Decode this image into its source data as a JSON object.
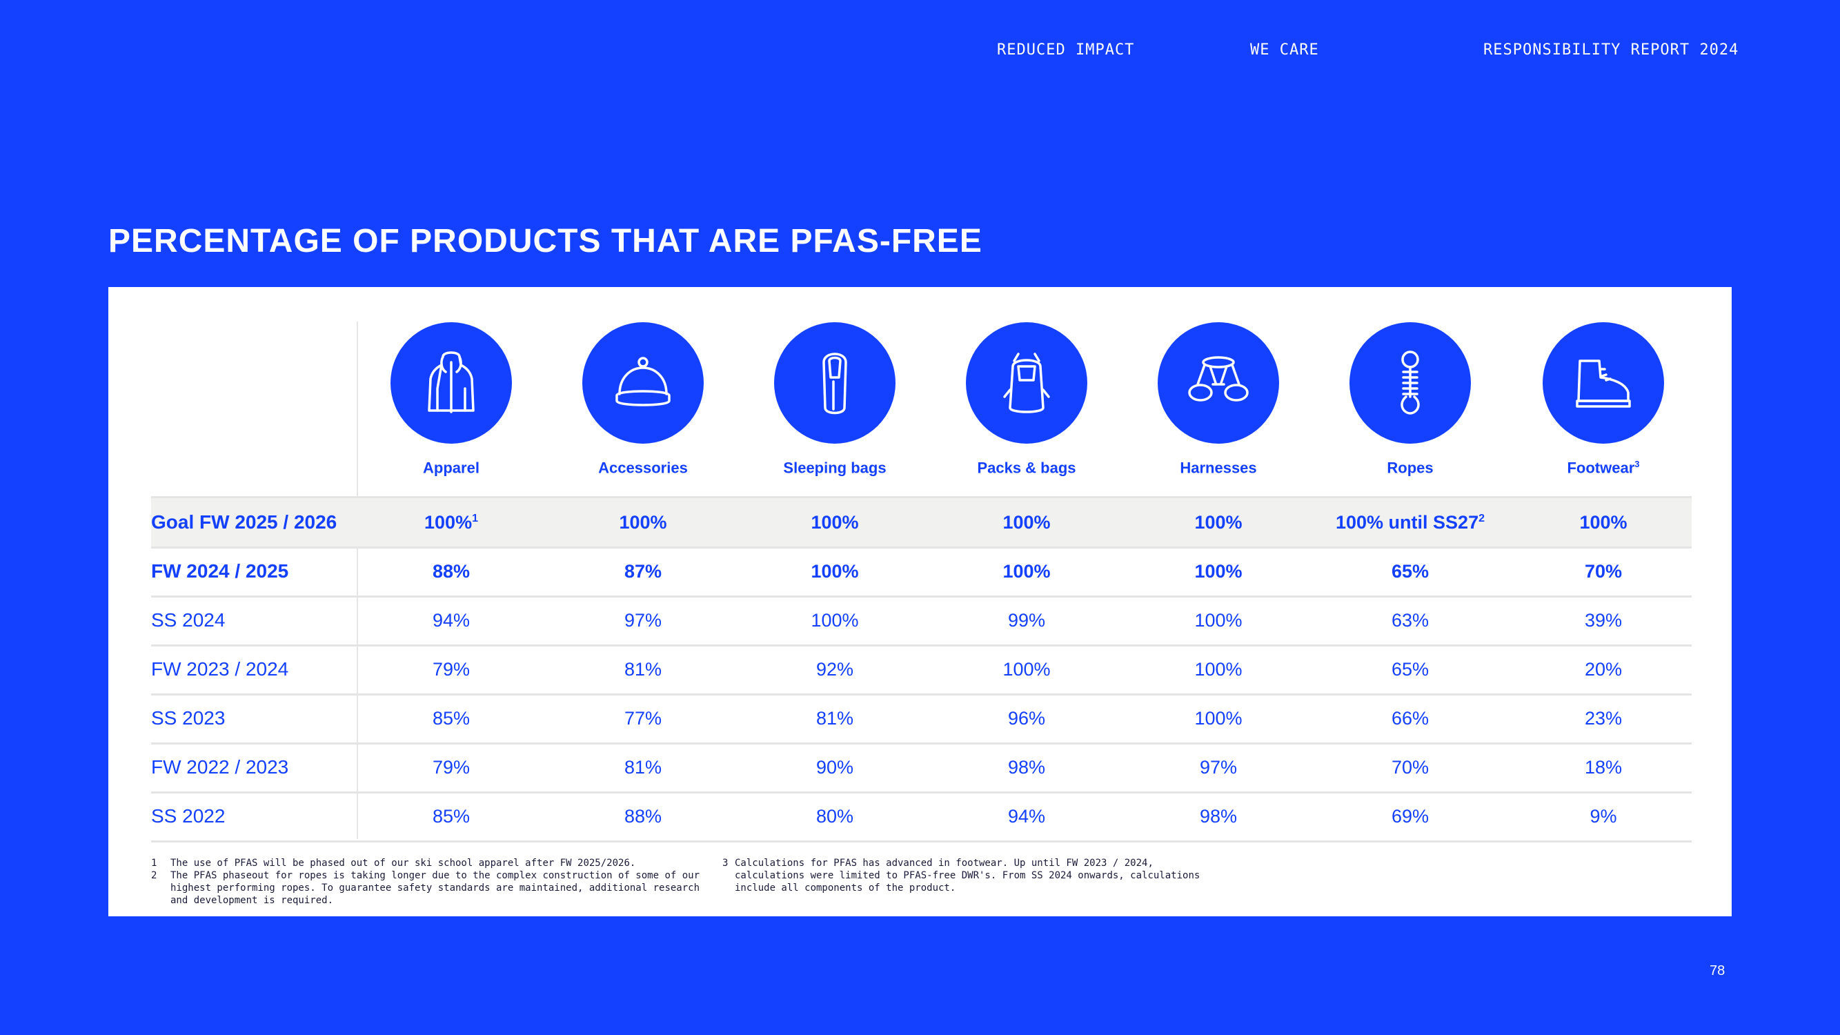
{
  "header": {
    "nav": [
      "REDUCED IMPACT",
      "WE CARE",
      "RESPONSIBILITY REPORT 2024"
    ]
  },
  "title": "PERCENTAGE OF PRODUCTS THAT ARE PFAS-FREE",
  "table": {
    "columns": [
      {
        "label": "Apparel",
        "sup": "",
        "icon": "jacket-icon"
      },
      {
        "label": "Accessories",
        "sup": "",
        "icon": "beanie-icon"
      },
      {
        "label": "Sleeping bags",
        "sup": "",
        "icon": "sleeping-bag-icon"
      },
      {
        "label": "Packs & bags",
        "sup": "",
        "icon": "backpack-icon"
      },
      {
        "label": "Harnesses",
        "sup": "",
        "icon": "harness-icon"
      },
      {
        "label": "Ropes",
        "sup": "",
        "icon": "rope-icon"
      },
      {
        "label": "Footwear",
        "sup": "3",
        "icon": "boot-icon"
      }
    ],
    "rows": [
      {
        "label": "Goal FW 2025 / 2026",
        "style": "goal",
        "cells": [
          {
            "v": "100%",
            "sup": "1"
          },
          {
            "v": "100%",
            "sup": ""
          },
          {
            "v": "100%",
            "sup": ""
          },
          {
            "v": "100%",
            "sup": ""
          },
          {
            "v": "100%",
            "sup": ""
          },
          {
            "v": "100% until SS27",
            "sup": "2"
          },
          {
            "v": "100%",
            "sup": ""
          }
        ]
      },
      {
        "label": "FW 2024 / 2025",
        "style": "bold",
        "cells": [
          {
            "v": "88%",
            "sup": ""
          },
          {
            "v": "87%",
            "sup": ""
          },
          {
            "v": "100%",
            "sup": ""
          },
          {
            "v": "100%",
            "sup": ""
          },
          {
            "v": "100%",
            "sup": ""
          },
          {
            "v": "65%",
            "sup": ""
          },
          {
            "v": "70%",
            "sup": ""
          }
        ]
      },
      {
        "label": "SS 2024",
        "style": "normal",
        "cells": [
          {
            "v": "94%",
            "sup": ""
          },
          {
            "v": "97%",
            "sup": ""
          },
          {
            "v": "100%",
            "sup": ""
          },
          {
            "v": "99%",
            "sup": ""
          },
          {
            "v": "100%",
            "sup": ""
          },
          {
            "v": "63%",
            "sup": ""
          },
          {
            "v": "39%",
            "sup": ""
          }
        ]
      },
      {
        "label": "FW 2023 / 2024",
        "style": "normal",
        "cells": [
          {
            "v": "79%",
            "sup": ""
          },
          {
            "v": "81%",
            "sup": ""
          },
          {
            "v": "92%",
            "sup": ""
          },
          {
            "v": "100%",
            "sup": ""
          },
          {
            "v": "100%",
            "sup": ""
          },
          {
            "v": "65%",
            "sup": ""
          },
          {
            "v": "20%",
            "sup": ""
          }
        ]
      },
      {
        "label": "SS 2023",
        "style": "normal",
        "cells": [
          {
            "v": "85%",
            "sup": ""
          },
          {
            "v": "77%",
            "sup": ""
          },
          {
            "v": "81%",
            "sup": ""
          },
          {
            "v": "96%",
            "sup": ""
          },
          {
            "v": "100%",
            "sup": ""
          },
          {
            "v": "66%",
            "sup": ""
          },
          {
            "v": "23%",
            "sup": ""
          }
        ]
      },
      {
        "label": "FW 2022 / 2023",
        "style": "normal",
        "cells": [
          {
            "v": "79%",
            "sup": ""
          },
          {
            "v": "81%",
            "sup": ""
          },
          {
            "v": "90%",
            "sup": ""
          },
          {
            "v": "98%",
            "sup": ""
          },
          {
            "v": "97%",
            "sup": ""
          },
          {
            "v": "70%",
            "sup": ""
          },
          {
            "v": "18%",
            "sup": ""
          }
        ]
      },
      {
        "label": "SS 2022",
        "style": "normal",
        "cells": [
          {
            "v": "85%",
            "sup": ""
          },
          {
            "v": "88%",
            "sup": ""
          },
          {
            "v": "80%",
            "sup": ""
          },
          {
            "v": "94%",
            "sup": ""
          },
          {
            "v": "98%",
            "sup": ""
          },
          {
            "v": "69%",
            "sup": ""
          },
          {
            "v": "9%",
            "sup": ""
          }
        ]
      }
    ]
  },
  "footnotes": [
    {
      "num": "1",
      "text": "The use of PFAS will be phased out of our ski school apparel after FW 2025/2026."
    },
    {
      "num": "2",
      "text": "The PFAS phaseout for ropes is taking longer due to the complex construction of some of our highest performing ropes. To guarantee safety standards are maintained, additional research and development is required."
    },
    {
      "num": "3",
      "text": "Calculations for PFAS has advanced in footwear. Up until FW 2023 / 2024, calculations were limited to PFAS-free DWR's. From SS 2024 onwards, calculations include all components of the product."
    }
  ],
  "page_number": "78",
  "colors": {
    "brand_blue": "#1440ff",
    "goal_row_bg": "#f1f1ef",
    "card_bg": "#ffffff"
  }
}
